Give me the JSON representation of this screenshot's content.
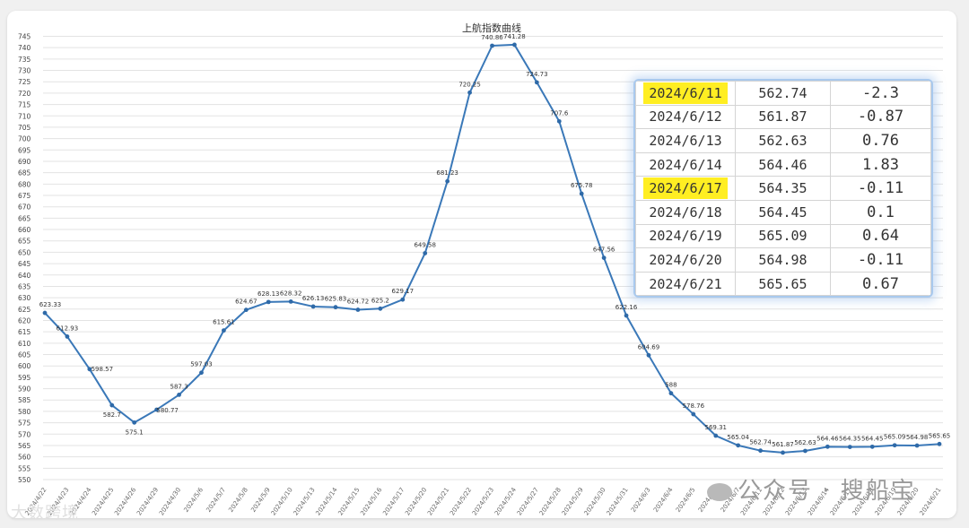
{
  "chart_data": {
    "type": "line",
    "title": "上航指数曲线",
    "xlabel": "",
    "ylabel": "",
    "ylim": [
      550,
      745
    ],
    "y_ticks": [
      745,
      740,
      735,
      730,
      725,
      720,
      715,
      710,
      705,
      700,
      695,
      690,
      685,
      680,
      675,
      670,
      665,
      660,
      655,
      650,
      645,
      640,
      635,
      630,
      625,
      620,
      615,
      610,
      605,
      600,
      595,
      590,
      585,
      580,
      575,
      570,
      565,
      560,
      555,
      550
    ],
    "grid": true,
    "legend": "none",
    "line_color": "#3a78b8",
    "x": [
      "2024/4/22",
      "2024/4/23",
      "2024/4/24",
      "2024/4/25",
      "2024/4/26",
      "2024/4/29",
      "2024/4/30",
      "2024/5/6",
      "2024/5/7",
      "2024/5/8",
      "2024/5/9",
      "2024/5/10",
      "2024/5/13",
      "2024/5/14",
      "2024/5/15",
      "2024/5/16",
      "2024/5/17",
      "2024/5/20",
      "2024/5/21",
      "2024/5/22",
      "2024/5/23",
      "2024/5/24",
      "2024/5/27",
      "2024/5/28",
      "2024/5/29",
      "2024/5/30",
      "2024/5/31",
      "2024/6/3",
      "2024/6/4",
      "2024/6/5",
      "2024/6/6",
      "2024/6/7",
      "2024/6/11",
      "2024/6/12",
      "2024/6/13",
      "2024/6/14",
      "2024/6/17",
      "2024/6/18",
      "2024/6/19",
      "2024/6/20",
      "2024/6/21"
    ],
    "values": [
      623.33,
      612.93,
      598.57,
      582.7,
      575.1,
      580.77,
      587.3,
      597.03,
      615.61,
      624.67,
      628.13,
      628.32,
      626.13,
      625.83,
      624.72,
      625.2,
      629.17,
      649.58,
      681.23,
      720.25,
      740.86,
      741.28,
      724.73,
      707.6,
      675.78,
      647.56,
      622.16,
      604.69,
      588,
      578.76,
      569.31,
      565.04,
      562.74,
      561.87,
      562.63,
      564.46,
      564.35,
      564.45,
      565.09,
      564.98,
      565.65
    ],
    "labels": [
      "623.33",
      "612.93",
      "598.57",
      "582.7",
      "575.1",
      "580.77",
      "587.3",
      "597.03",
      "615.61",
      "624.67",
      "628.13",
      "628.32",
      "626.13",
      "625.83",
      "624.72",
      "625.2",
      "629.17",
      "649.58",
      "681.23",
      "720.25",
      "740.86",
      "741.28",
      "724.73",
      "707.6",
      "675.78",
      "647.56",
      "622.16",
      "604.69",
      "588",
      "578.76",
      "569.31",
      "565.04",
      "562.74",
      "561.87",
      "562.63",
      "564.46",
      "564.35",
      "564.45",
      "565.09",
      "564.98",
      "565.65"
    ]
  },
  "table": {
    "rows": [
      {
        "date": "2024/6/11",
        "value": "562.74",
        "change": "-2.3",
        "highlight": true,
        "dir": "neg"
      },
      {
        "date": "2024/6/12",
        "value": "561.87",
        "change": "-0.87",
        "highlight": false,
        "dir": "neg"
      },
      {
        "date": "2024/6/13",
        "value": "562.63",
        "change": "0.76",
        "highlight": false,
        "dir": "pos"
      },
      {
        "date": "2024/6/14",
        "value": "564.46",
        "change": "1.83",
        "highlight": false,
        "dir": "pos"
      },
      {
        "date": "2024/6/17",
        "value": "564.35",
        "change": "-0.11",
        "highlight": true,
        "dir": "neg"
      },
      {
        "date": "2024/6/18",
        "value": "564.45",
        "change": "0.1",
        "highlight": false,
        "dir": "pos"
      },
      {
        "date": "2024/6/19",
        "value": "565.09",
        "change": "0.64",
        "highlight": false,
        "dir": "pos"
      },
      {
        "date": "2024/6/20",
        "value": "564.98",
        "change": "-0.11",
        "highlight": false,
        "dir": "neg"
      },
      {
        "date": "2024/6/21",
        "value": "565.65",
        "change": "0.67",
        "highlight": false,
        "dir": "pos"
      }
    ]
  },
  "watermarks": {
    "left": "大数跨境",
    "right": "公众号 · 搜船宝",
    "right_icon": "wechat-icon"
  }
}
